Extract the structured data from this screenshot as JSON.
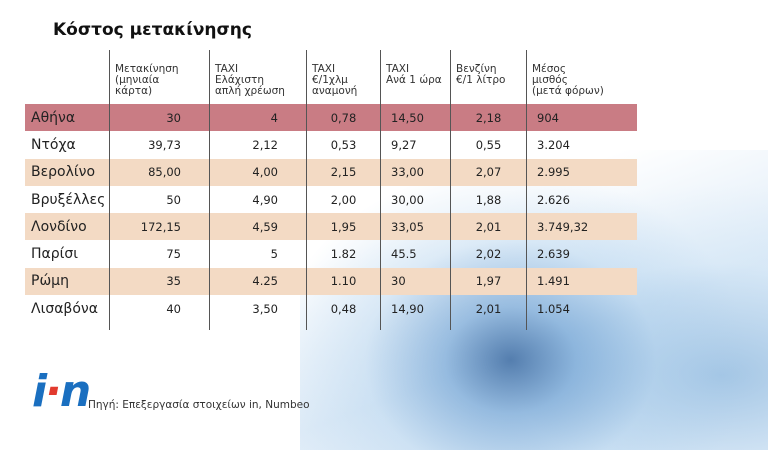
{
  "title": "Κόστος μετακίνησης",
  "source": "Πηγή: Επεξεργασία στοιχείων in, Numbeo",
  "logo_text": "in",
  "colors": {
    "highlight_row": "#c97c84",
    "alt_row": "#f3dac4",
    "logo": "#1a6fc0"
  },
  "chart_data": {
    "type": "table",
    "title": "Κόστος μετακίνησης",
    "columns": [
      "",
      "Μετακίνηση\n(μηνιαία\nκάρτα)",
      "TAXI\nΕλάχιστη\nαπλή χρέωση",
      "TAXI\n€/1χλμ\nαναμονή",
      "TAXI\nΑνά 1 ώρα",
      "Βενζίνη\n€/1 λίτρο",
      "Μέσος\nμισθός\n(μετά φόρων)"
    ],
    "rows": [
      [
        "Αθήνα",
        "30",
        "4",
        "0,78",
        "14,50",
        "2,18",
        "904"
      ],
      [
        "Ντόχα",
        "39,73",
        "2,12",
        "0,53",
        "9,27",
        "0,55",
        "3.204"
      ],
      [
        "Βερολίνο",
        "85,00",
        "4,00",
        "2,15",
        "33,00",
        "2,07",
        "2.995"
      ],
      [
        "Βρυξέλλες",
        "50",
        "4,90",
        "2,00",
        "30,00",
        "1,88",
        "2.626"
      ],
      [
        "Λονδίνο",
        "172,15",
        "4,59",
        "1,95",
        "33,05",
        "2,01",
        "3.749,32"
      ],
      [
        "Παρίσι",
        "75",
        "5",
        "1.82",
        "45.5",
        "2,02",
        "2.639"
      ],
      [
        "Ρώμη",
        "35",
        "4.25",
        "1.10",
        "30",
        "1,97",
        "1.491"
      ],
      [
        "Λισαβόνα",
        "40",
        "3,50",
        "0,48",
        "14,90",
        "2,01",
        "1.054"
      ]
    ]
  }
}
